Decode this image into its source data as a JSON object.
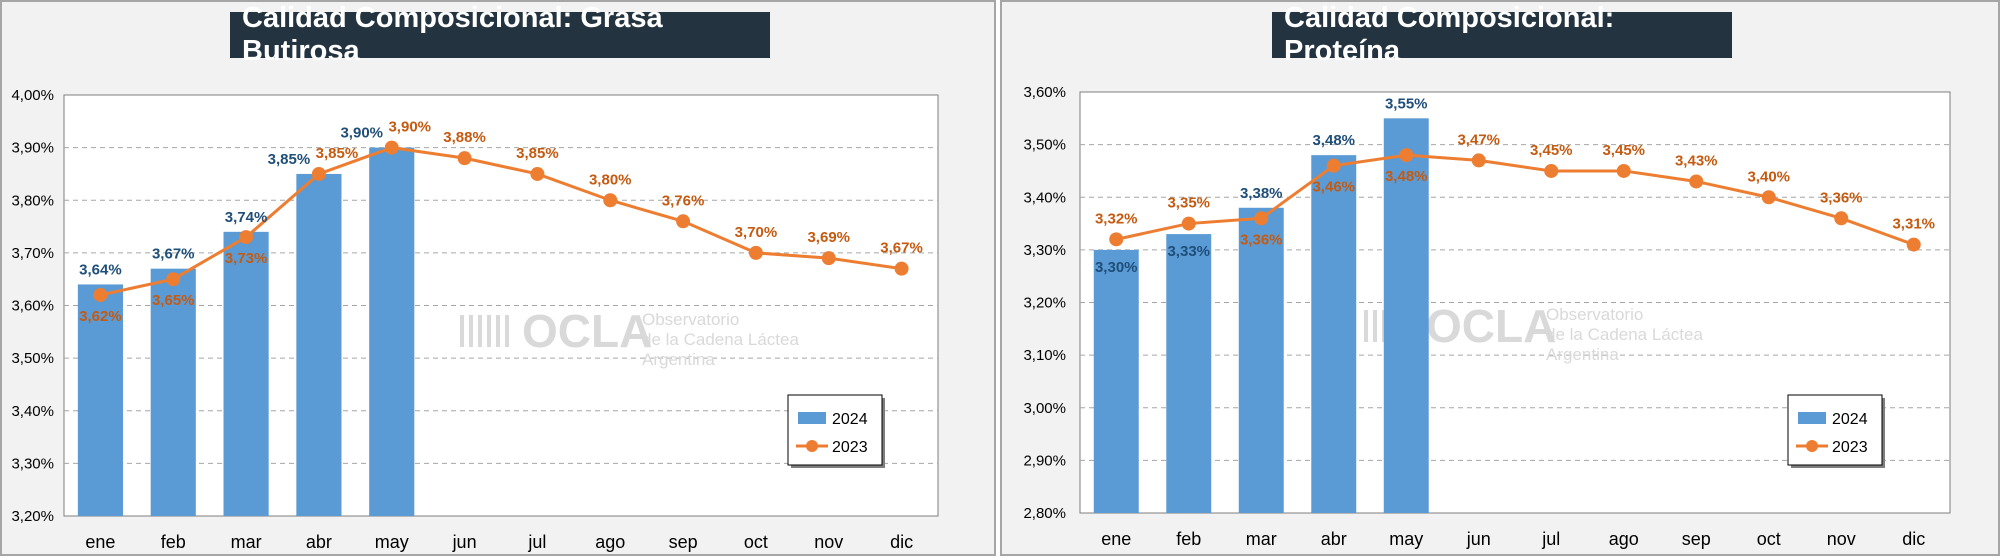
{
  "colors": {
    "bar": "#5b9bd5",
    "line": "#ed7d31",
    "bar_label": "#1f4e79",
    "line_label": "#c55a11",
    "title_bg": "#243340"
  },
  "watermark": {
    "name": "OCLA",
    "line1": "Observatorio",
    "line2": "de la Cadena Láctea",
    "line3": "Argentina"
  },
  "chart_data": [
    {
      "type": "bar",
      "title": "Calidad Composicional: Grasa Butirosa",
      "categories": [
        "ene",
        "feb",
        "mar",
        "abr",
        "may",
        "jun",
        "jul",
        "ago",
        "sep",
        "oct",
        "nov",
        "dic"
      ],
      "yticks": [
        "3,20%",
        "3,30%",
        "3,40%",
        "3,50%",
        "3,60%",
        "3,70%",
        "3,80%",
        "3,90%",
        "4,00%"
      ],
      "ylim": [
        3.2,
        4.0
      ],
      "grid": true,
      "legend_position": "bottom-right",
      "series": [
        {
          "name": "2024",
          "kind": "bar",
          "values": [
            3.64,
            3.67,
            3.74,
            3.85,
            3.9,
            null,
            null,
            null,
            null,
            null,
            null,
            null
          ],
          "labels": [
            "3,64%",
            "3,67%",
            "3,74%",
            "3,85%",
            "3,90%"
          ]
        },
        {
          "name": "2023",
          "kind": "line",
          "values": [
            3.62,
            3.65,
            3.73,
            3.85,
            3.9,
            3.88,
            3.85,
            3.8,
            3.76,
            3.7,
            3.69,
            3.67
          ],
          "labels": [
            "3,62%",
            "3,65%",
            "3,73%",
            "3,85%",
            "3,90%",
            "3,88%",
            "3,85%",
            "3,80%",
            "3,76%",
            "3,70%",
            "3,69%",
            "3,67%"
          ]
        }
      ]
    },
    {
      "type": "bar",
      "title": "Calidad Composicional: Proteína",
      "categories": [
        "ene",
        "feb",
        "mar",
        "abr",
        "may",
        "jun",
        "jul",
        "ago",
        "sep",
        "oct",
        "nov",
        "dic"
      ],
      "yticks": [
        "2,80%",
        "2,90%",
        "3,00%",
        "3,10%",
        "3,20%",
        "3,30%",
        "3,40%",
        "3,50%",
        "3,60%"
      ],
      "ylim": [
        2.8,
        3.6
      ],
      "grid": true,
      "legend_position": "bottom-right",
      "series": [
        {
          "name": "2024",
          "kind": "bar",
          "values": [
            3.3,
            3.33,
            3.38,
            3.48,
            3.55,
            null,
            null,
            null,
            null,
            null,
            null,
            null
          ],
          "labels": [
            "3,30%",
            "3,33%",
            "3,38%",
            "3,48%",
            "3,55%"
          ]
        },
        {
          "name": "2023",
          "kind": "line",
          "values": [
            3.32,
            3.35,
            3.36,
            3.46,
            3.48,
            3.47,
            3.45,
            3.45,
            3.43,
            3.4,
            3.36,
            3.31
          ],
          "labels": [
            "3,32%",
            "3,35%",
            "3,36%",
            "3,46%",
            "3,48%",
            "3,47%",
            "3,45%",
            "3,45%",
            "3,43%",
            "3,40%",
            "3,36%",
            "3,31%"
          ]
        }
      ]
    }
  ]
}
